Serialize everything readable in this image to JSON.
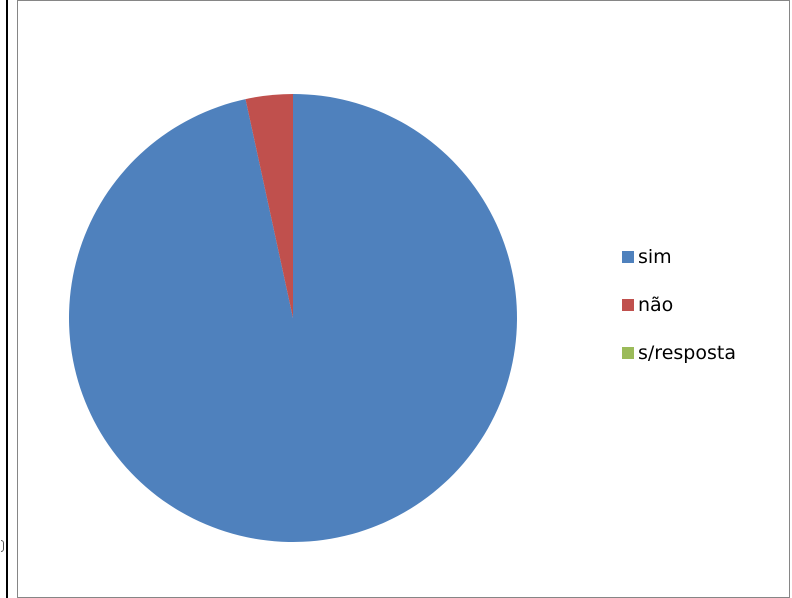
{
  "chart_data": {
    "type": "pie",
    "categories": [
      "sim",
      "não",
      "s/resposta"
    ],
    "values": [
      96.6,
      3.4,
      0
    ],
    "colors": [
      "#4F81BD",
      "#C0504D",
      "#9BBB59"
    ],
    "start_angle_deg": 0,
    "direction": "clockwise",
    "legend_position": "right",
    "title": ""
  }
}
